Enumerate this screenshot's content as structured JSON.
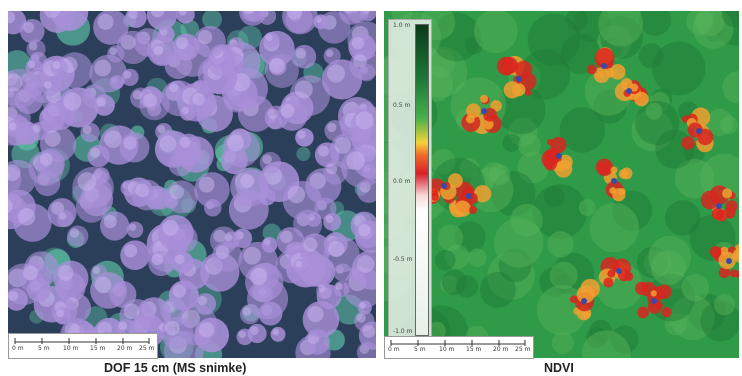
{
  "left_panel": {
    "caption": "DOF 15 cm (MS snimke)",
    "scale_labels": [
      "0 m",
      "5 m",
      "10 m",
      "15 m",
      "20 m",
      "25 m"
    ],
    "colors": {
      "canopy": "#a88fd8",
      "canopy_light": "#c9b6f0",
      "ground": "#2c3f5a",
      "conifer": "#5fc6a8"
    }
  },
  "right_panel": {
    "caption": "NDVI",
    "legend_ticks": [
      "1.0 m",
      "0.5 m",
      "0.0 m",
      "-0.5 m",
      "-1.0 m"
    ],
    "scale_labels": [
      "0 m",
      "5 m",
      "10 m",
      "15 m",
      "20 m",
      "25 m"
    ],
    "colors": {
      "vegetation": "#2f9a48",
      "vegetation_dark": "#1f7a36",
      "low": "#d8261e",
      "mid": "#f0a030",
      "point": "#3a4aa8"
    }
  }
}
